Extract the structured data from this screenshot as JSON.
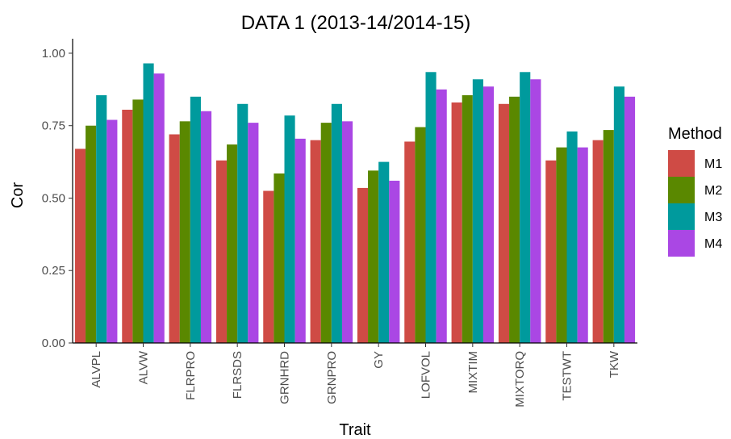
{
  "chart_data": {
    "type": "bar",
    "title": "DATA 1 (2013-14/2014-15)",
    "xlabel": "Trait",
    "ylabel": "Cor",
    "ylim": [
      0,
      1.05
    ],
    "yticks": [
      "0.00",
      "0.25",
      "0.50",
      "0.75",
      "1.00"
    ],
    "grid": false,
    "legend_position": "right",
    "legend_title": "Method",
    "categories": [
      "ALVPL",
      "ALVW",
      "FLRPRO",
      "FLRSDS",
      "GRNHRD",
      "GRNPRO",
      "GY",
      "LOFVOL",
      "MIXTIM",
      "MIXTORQ",
      "TESTWT",
      "TKW"
    ],
    "series": [
      {
        "name": "M1",
        "color": "#CF4B45",
        "values": [
          0.67,
          0.805,
          0.72,
          0.63,
          0.525,
          0.7,
          0.535,
          0.695,
          0.83,
          0.825,
          0.63,
          0.7
        ]
      },
      {
        "name": "M2",
        "color": "#5A8800",
        "values": [
          0.75,
          0.84,
          0.765,
          0.685,
          0.585,
          0.76,
          0.595,
          0.745,
          0.855,
          0.85,
          0.675,
          0.735
        ]
      },
      {
        "name": "M3",
        "color": "#009A9D",
        "values": [
          0.855,
          0.965,
          0.85,
          0.825,
          0.785,
          0.825,
          0.625,
          0.935,
          0.91,
          0.935,
          0.73,
          0.885
        ]
      },
      {
        "name": "M4",
        "color": "#AA47E4",
        "values": [
          0.77,
          0.93,
          0.8,
          0.76,
          0.705,
          0.765,
          0.56,
          0.875,
          0.885,
          0.91,
          0.675,
          0.85
        ]
      }
    ]
  }
}
